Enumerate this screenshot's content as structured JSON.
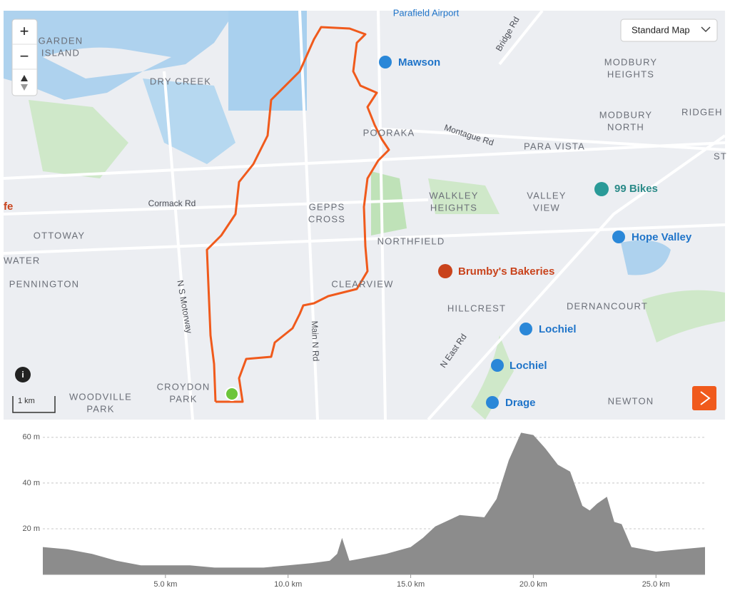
{
  "map": {
    "controls": {
      "zoom_in": "+",
      "zoom_out": "−",
      "map_style": "Standard Map",
      "scale": "1 km"
    },
    "labels": [
      "Parafield Airport",
      "GARDEN",
      "ISLAND",
      "DRY CREEK",
      "Bridge Rd",
      "MODBURY",
      "HEIGHTS",
      "Mawson",
      "MODBURY",
      "NORTH",
      "RIDGEH",
      "POORAKA",
      "Montague Rd",
      "PARA VISTA",
      "ST",
      "Cormack Rd",
      "99 Bikes",
      "GEPPS",
      "CROSS",
      "WALKLEY",
      "HEIGHTS",
      "VALLEY",
      "VIEW",
      "fe",
      "OTTOWAY",
      "NORTHFIELD",
      "Hope Valley",
      "WATER",
      "Brumby's Bakeries",
      "PENNINGTON",
      "CLEARVIEW",
      "N S Motorway",
      "HILLCREST",
      "DERNANCOURT",
      "Main N Rd",
      "Lochiel",
      "Lochiel",
      "N East Rd",
      "CROYDON",
      "PARK",
      "WOODVILLE",
      "PARK",
      "Drage",
      "NEWTON"
    ]
  },
  "chart_data": {
    "type": "area",
    "color": "#8c8c8c",
    "x": [
      0,
      1,
      2,
      3,
      4,
      5,
      6,
      7,
      8,
      9,
      10,
      11,
      11.7,
      12.0,
      12.2,
      12.5,
      13,
      14,
      15,
      15.5,
      16,
      17,
      18,
      18.5,
      19,
      19.5,
      20,
      20.5,
      21,
      21.5,
      22,
      22.3,
      22.6,
      23,
      23.3,
      23.6,
      24,
      25,
      26,
      27
    ],
    "values": [
      12,
      11,
      9,
      6,
      4,
      4,
      4,
      3,
      3,
      3,
      4,
      5,
      6,
      9,
      16,
      6,
      7,
      9,
      12,
      16,
      21,
      26,
      25,
      33,
      50,
      62,
      61,
      55,
      48,
      45,
      30,
      28,
      31,
      34,
      23,
      22,
      12,
      10,
      11,
      12
    ],
    "xlim": [
      0,
      27
    ],
    "ylim": [
      0,
      64
    ],
    "xticks": [
      {
        "value": 5,
        "label": "5.0 km"
      },
      {
        "value": 10,
        "label": "10.0 km"
      },
      {
        "value": 15,
        "label": "15.0 km"
      },
      {
        "value": 20,
        "label": "20.0 km"
      },
      {
        "value": 25,
        "label": "25.0 km"
      }
    ],
    "yticks": [
      {
        "value": 20,
        "label": "20 m"
      },
      {
        "value": 40,
        "label": "40 m"
      },
      {
        "value": 60,
        "label": "60 m"
      }
    ],
    "grid": true
  }
}
